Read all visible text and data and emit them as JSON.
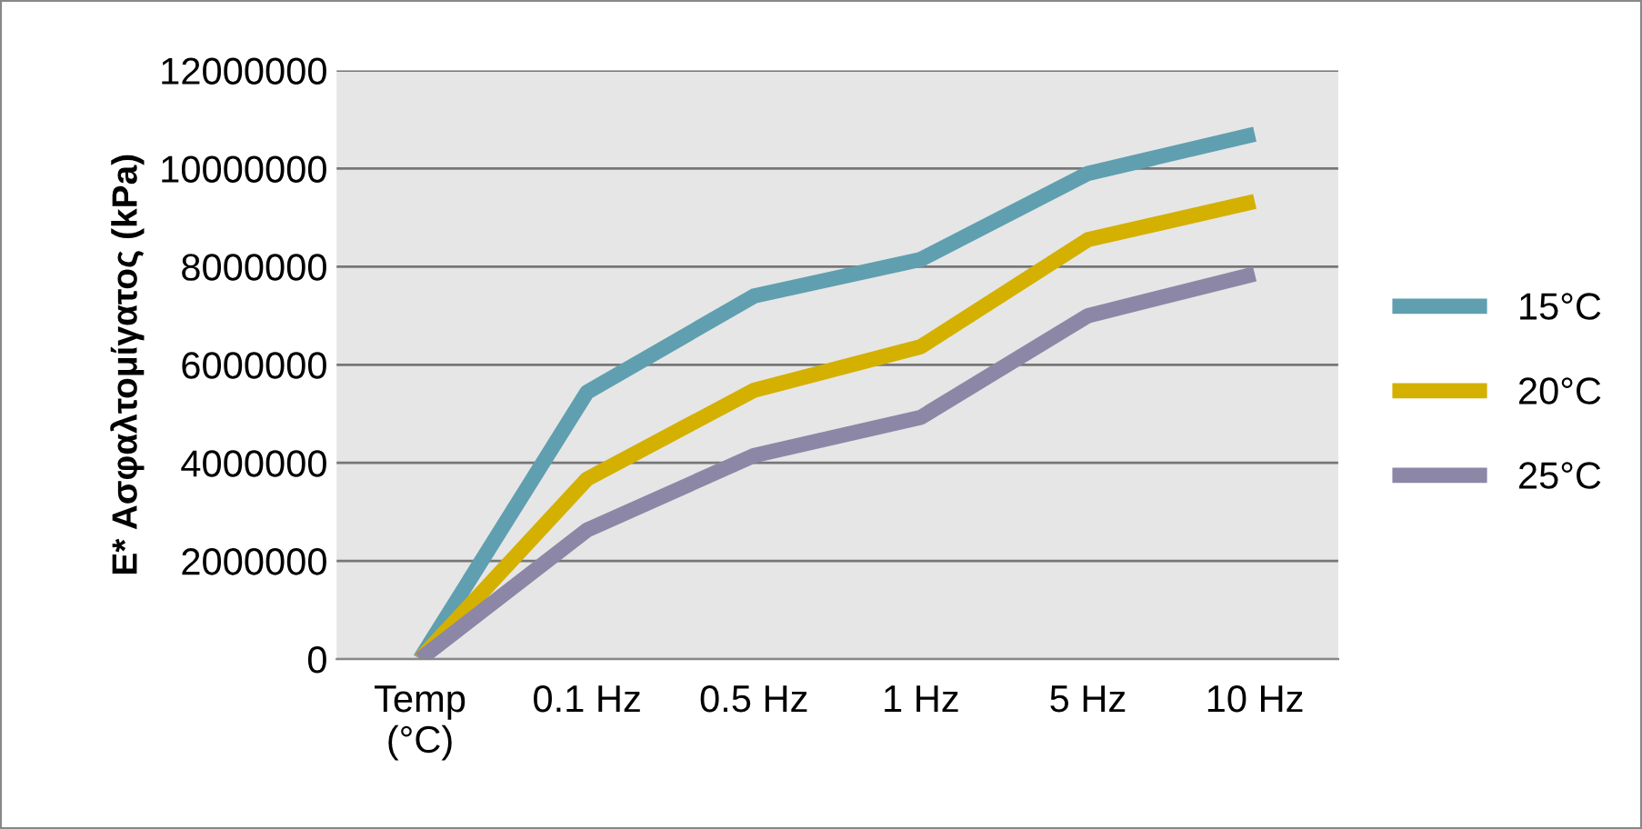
{
  "chart_data": {
    "type": "line",
    "ylabel": "E* Ασφαλτομίγατος (kPa)",
    "categories": [
      "Temp\n(°C)",
      "0.1 Hz",
      "0.5 Hz",
      "1 Hz",
      "5 Hz",
      "10 Hz"
    ],
    "series": [
      {
        "name": "15°C",
        "color": "#5f9fb0",
        "values": [
          0,
          5440000,
          7400000,
          8150000,
          9900000,
          10700000
        ]
      },
      {
        "name": "20°C",
        "color": "#d4b000",
        "values": [
          0,
          3670000,
          5480000,
          6370000,
          8550000,
          9330000
        ]
      },
      {
        "name": "25°C",
        "color": "#8c87a6",
        "values": [
          0,
          2630000,
          4150000,
          4930000,
          7000000,
          7850000
        ]
      }
    ],
    "ylim": [
      0,
      12000000
    ],
    "yticks": [
      0,
      2000000,
      4000000,
      6000000,
      8000000,
      10000000,
      12000000
    ],
    "grid": "y",
    "legend": "right",
    "marker": "none",
    "line_style": "solid"
  }
}
